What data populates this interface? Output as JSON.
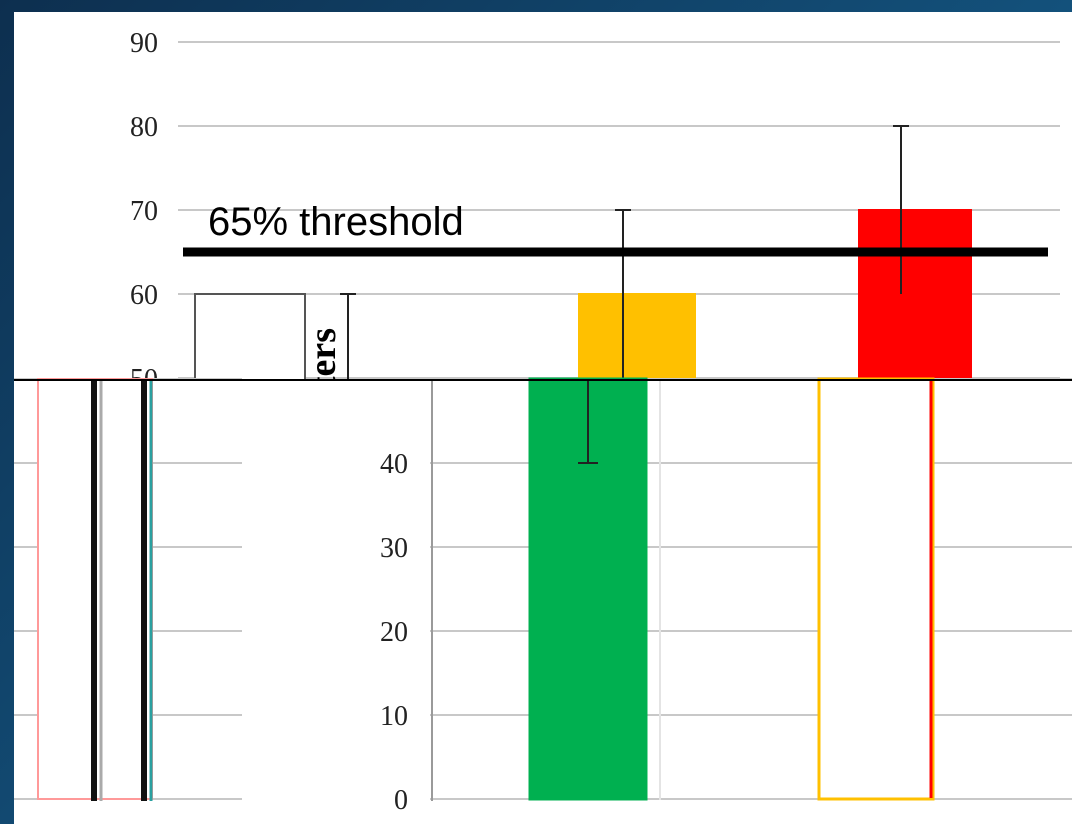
{
  "chart_data": [
    {
      "type": "bar",
      "ylabel": "% Undersize Oysters",
      "ylim": [
        0,
        90
      ],
      "yticks": [
        0,
        10,
        20,
        30,
        40,
        50,
        60,
        70,
        80,
        90
      ],
      "grid": true,
      "annotations": [
        {
          "text": "65% threshold",
          "y": 65
        }
      ],
      "series": [
        {
          "bars": [
            {
              "value": 60,
              "err_high": 60,
              "err_low": 60,
              "fill": "#ffffff",
              "edge": "#555555"
            },
            {
              "value": 60,
              "err_high": 70,
              "err_low": 50,
              "fill": "#ffc000",
              "edge": "#ffc000"
            },
            {
              "value": 70,
              "err_high": 80,
              "err_low": 60,
              "fill": "#ff0000",
              "edge": "#ff0000"
            }
          ]
        }
      ]
    },
    {
      "type": "bar",
      "ylim": [
        0,
        50
      ],
      "yticks": [
        0,
        10,
        20,
        30,
        40,
        50
      ],
      "grid": true,
      "series": [
        {
          "bars": [
            {
              "value": 50,
              "fill": "#ffffff",
              "edge": "#ff9999"
            },
            {
              "value": 50,
              "err_high": 60,
              "err_low": 40,
              "fill": "#00b050",
              "edge": "#00b050"
            },
            {
              "value": 50,
              "fill": "#ffffff",
              "edge": "#ffc000"
            }
          ]
        }
      ]
    }
  ]
}
